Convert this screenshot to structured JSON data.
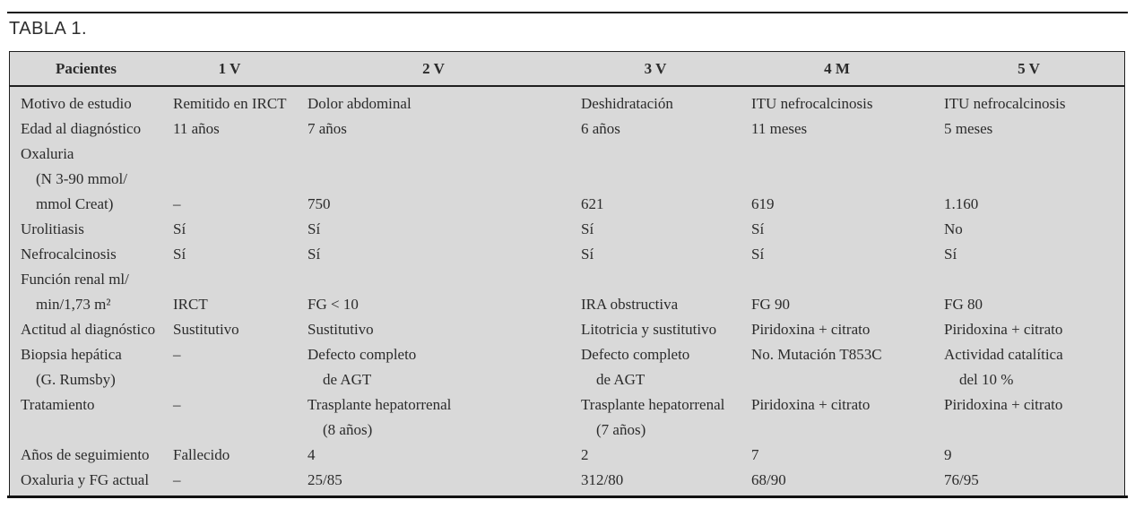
{
  "page_title": "TABLA 1.",
  "table": {
    "columns": [
      "Pacientes",
      "1 V",
      "2 V",
      "3 V",
      "4 M",
      "5 V"
    ],
    "rows": [
      {
        "label": [
          "Motivo de estudio"
        ],
        "values": [
          [
            "Remitido en IRCT"
          ],
          [
            "Dolor abdominal"
          ],
          [
            "Deshidratación"
          ],
          [
            "ITU nefrocalcinosis"
          ],
          [
            "ITU nefrocalcinosis"
          ]
        ],
        "valign": "top"
      },
      {
        "label": [
          "Edad al diagnóstico"
        ],
        "values": [
          [
            "11 años"
          ],
          [
            "7 años"
          ],
          [
            "6 años"
          ],
          [
            "11 meses"
          ],
          [
            "5 meses"
          ]
        ],
        "valign": "top"
      },
      {
        "label": [
          "Oxaluria",
          "(N 3-90 mmol/",
          "mmol Creat)"
        ],
        "values": [
          [
            "–"
          ],
          [
            "750"
          ],
          [
            "621"
          ],
          [
            "619"
          ],
          [
            "1.160"
          ]
        ],
        "valign": "bottom"
      },
      {
        "label": [
          "Urolitiasis"
        ],
        "values": [
          [
            "Sí"
          ],
          [
            "Sí"
          ],
          [
            "Sí"
          ],
          [
            "Sí"
          ],
          [
            "No"
          ]
        ],
        "valign": "top"
      },
      {
        "label": [
          "Nefrocalcinosis"
        ],
        "values": [
          [
            "Sí"
          ],
          [
            "Sí"
          ],
          [
            "Sí"
          ],
          [
            "Sí"
          ],
          [
            "Sí"
          ]
        ],
        "valign": "top"
      },
      {
        "label": [
          "Función renal ml/",
          "min/1,73 m²"
        ],
        "values": [
          [
            "IRCT"
          ],
          [
            "FG < 10"
          ],
          [
            "IRA obstructiva"
          ],
          [
            "FG 90"
          ],
          [
            "FG 80"
          ]
        ],
        "valign": "bottom"
      },
      {
        "label": [
          "Actitud al diagnóstico"
        ],
        "values": [
          [
            "Sustitutivo"
          ],
          [
            "Sustitutivo"
          ],
          [
            "Litotricia y sustitutivo"
          ],
          [
            "Piridoxina + citrato"
          ],
          [
            "Piridoxina + citrato"
          ]
        ],
        "valign": "top"
      },
      {
        "label": [
          "Biopsia hepática",
          "(G. Rumsby)"
        ],
        "values": [
          [
            "–"
          ],
          [
            "Defecto completo",
            "de AGT"
          ],
          [
            "Defecto completo",
            "de AGT"
          ],
          [
            "No. Mutación T853C"
          ],
          [
            "Actividad catalítica",
            "del 10 %"
          ]
        ],
        "valign": "top"
      },
      {
        "label": [
          "Tratamiento"
        ],
        "values": [
          [
            "–"
          ],
          [
            "Trasplante hepatorrenal",
            "(8 años)"
          ],
          [
            "Trasplante hepatorrenal",
            "(7 años)"
          ],
          [
            "Piridoxina + citrato"
          ],
          [
            "Piridoxina + citrato"
          ]
        ],
        "valign": "top"
      },
      {
        "label": [
          "Años de seguimiento"
        ],
        "values": [
          [
            "Fallecido"
          ],
          [
            "4"
          ],
          [
            "2"
          ],
          [
            "7"
          ],
          [
            "9"
          ]
        ],
        "valign": "top"
      },
      {
        "label": [
          "Oxaluria y FG actual"
        ],
        "values": [
          [
            "–"
          ],
          [
            "25/85"
          ],
          [
            "312/80"
          ],
          [
            "68/90"
          ],
          [
            "76/95"
          ]
        ],
        "valign": "top"
      }
    ]
  },
  "colors": {
    "table_background": "#d9d9d9",
    "text": "#2b2b2b",
    "border": "#1f1f1f"
  }
}
